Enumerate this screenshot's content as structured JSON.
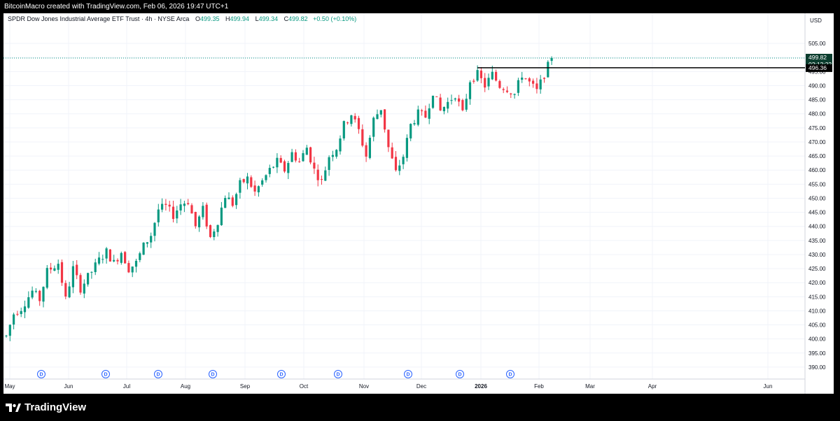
{
  "header": {
    "watermark_text": "BitcoinMacro created with TradingView.com, Feb 06, 2026 19:47 UTC+1"
  },
  "legend": {
    "symbol": "SPDR Dow Jones Industrial Average ETF Trust · 4h · NYSE Arca",
    "open_label": "O",
    "open": "499.35",
    "high_label": "H",
    "high": "499.94",
    "low_label": "L",
    "low": "499.34",
    "close_label": "C",
    "close": "499.82",
    "change": "+0.50 (+0.10%)"
  },
  "price_axis": {
    "currency": "USD",
    "last_price": "499.82",
    "countdown": "02:12:22",
    "marked_level": "496.36"
  },
  "footer": {
    "brand": "TradingView"
  },
  "colors": {
    "up": "#089981",
    "down": "#f23645",
    "dividend": "#2962ff",
    "last_price_bg": "#0b3d2e"
  },
  "chart_data": {
    "type": "candlestick",
    "timeframe": "4h",
    "x_ticks": [
      "May",
      "Jun",
      "Jul",
      "Aug",
      "Sep",
      "Oct",
      "Nov",
      "Dec",
      "2026",
      "Feb",
      "Mar",
      "Apr",
      "Jun"
    ],
    "y_ticks": [
      390,
      395,
      400,
      405,
      410,
      415,
      420,
      425,
      430,
      435,
      440,
      445,
      450,
      455,
      460,
      465,
      470,
      475,
      480,
      485,
      490,
      495,
      500,
      505
    ],
    "y_range": [
      387,
      510
    ],
    "price_path": [
      [
        0,
        401
      ],
      [
        2,
        409
      ],
      [
        4,
        411
      ],
      [
        7,
        417
      ],
      [
        9,
        414
      ],
      [
        11,
        424
      ],
      [
        14,
        427
      ],
      [
        16,
        414
      ],
      [
        18,
        425
      ],
      [
        20,
        418
      ],
      [
        22,
        422
      ],
      [
        25,
        428
      ],
      [
        27,
        431
      ],
      [
        29,
        427
      ],
      [
        31,
        431
      ],
      [
        33,
        425
      ],
      [
        35,
        427
      ],
      [
        37,
        433
      ],
      [
        39,
        437
      ],
      [
        41,
        446
      ],
      [
        43,
        447
      ],
      [
        45,
        444
      ],
      [
        47,
        448
      ],
      [
        49,
        449
      ],
      [
        51,
        440
      ],
      [
        53,
        446
      ],
      [
        55,
        436
      ],
      [
        57,
        442
      ],
      [
        59,
        451
      ],
      [
        61,
        448
      ],
      [
        63,
        455
      ],
      [
        65,
        457
      ],
      [
        67,
        452
      ],
      [
        69,
        456
      ],
      [
        71,
        460
      ],
      [
        73,
        463
      ],
      [
        75,
        460
      ],
      [
        77,
        466
      ],
      [
        79,
        463
      ],
      [
        81,
        468
      ],
      [
        83,
        460
      ],
      [
        85,
        456
      ],
      [
        87,
        465
      ],
      [
        89,
        468
      ],
      [
        91,
        476
      ],
      [
        93,
        480
      ],
      [
        95,
        474
      ],
      [
        97,
        465
      ],
      [
        99,
        478
      ],
      [
        101,
        482
      ],
      [
        103,
        468
      ],
      [
        105,
        459
      ],
      [
        107,
        465
      ],
      [
        109,
        476
      ],
      [
        111,
        480
      ],
      [
        113,
        479
      ],
      [
        115,
        488
      ],
      [
        117,
        481
      ],
      [
        119,
        484
      ],
      [
        121,
        487
      ],
      [
        123,
        480
      ],
      [
        125,
        492
      ],
      [
        127,
        494
      ],
      [
        129,
        490
      ],
      [
        131,
        494
      ],
      [
        133,
        490
      ],
      [
        135,
        489
      ],
      [
        137,
        487
      ],
      [
        139,
        494
      ],
      [
        141,
        491
      ],
      [
        143,
        488
      ],
      [
        145,
        494
      ],
      [
        147,
        499.82
      ]
    ],
    "horizontal_level": 496.36,
    "dividend_markers": [
      "D",
      "D",
      "D",
      "D",
      "D",
      "D",
      "D",
      "D",
      "D"
    ]
  }
}
